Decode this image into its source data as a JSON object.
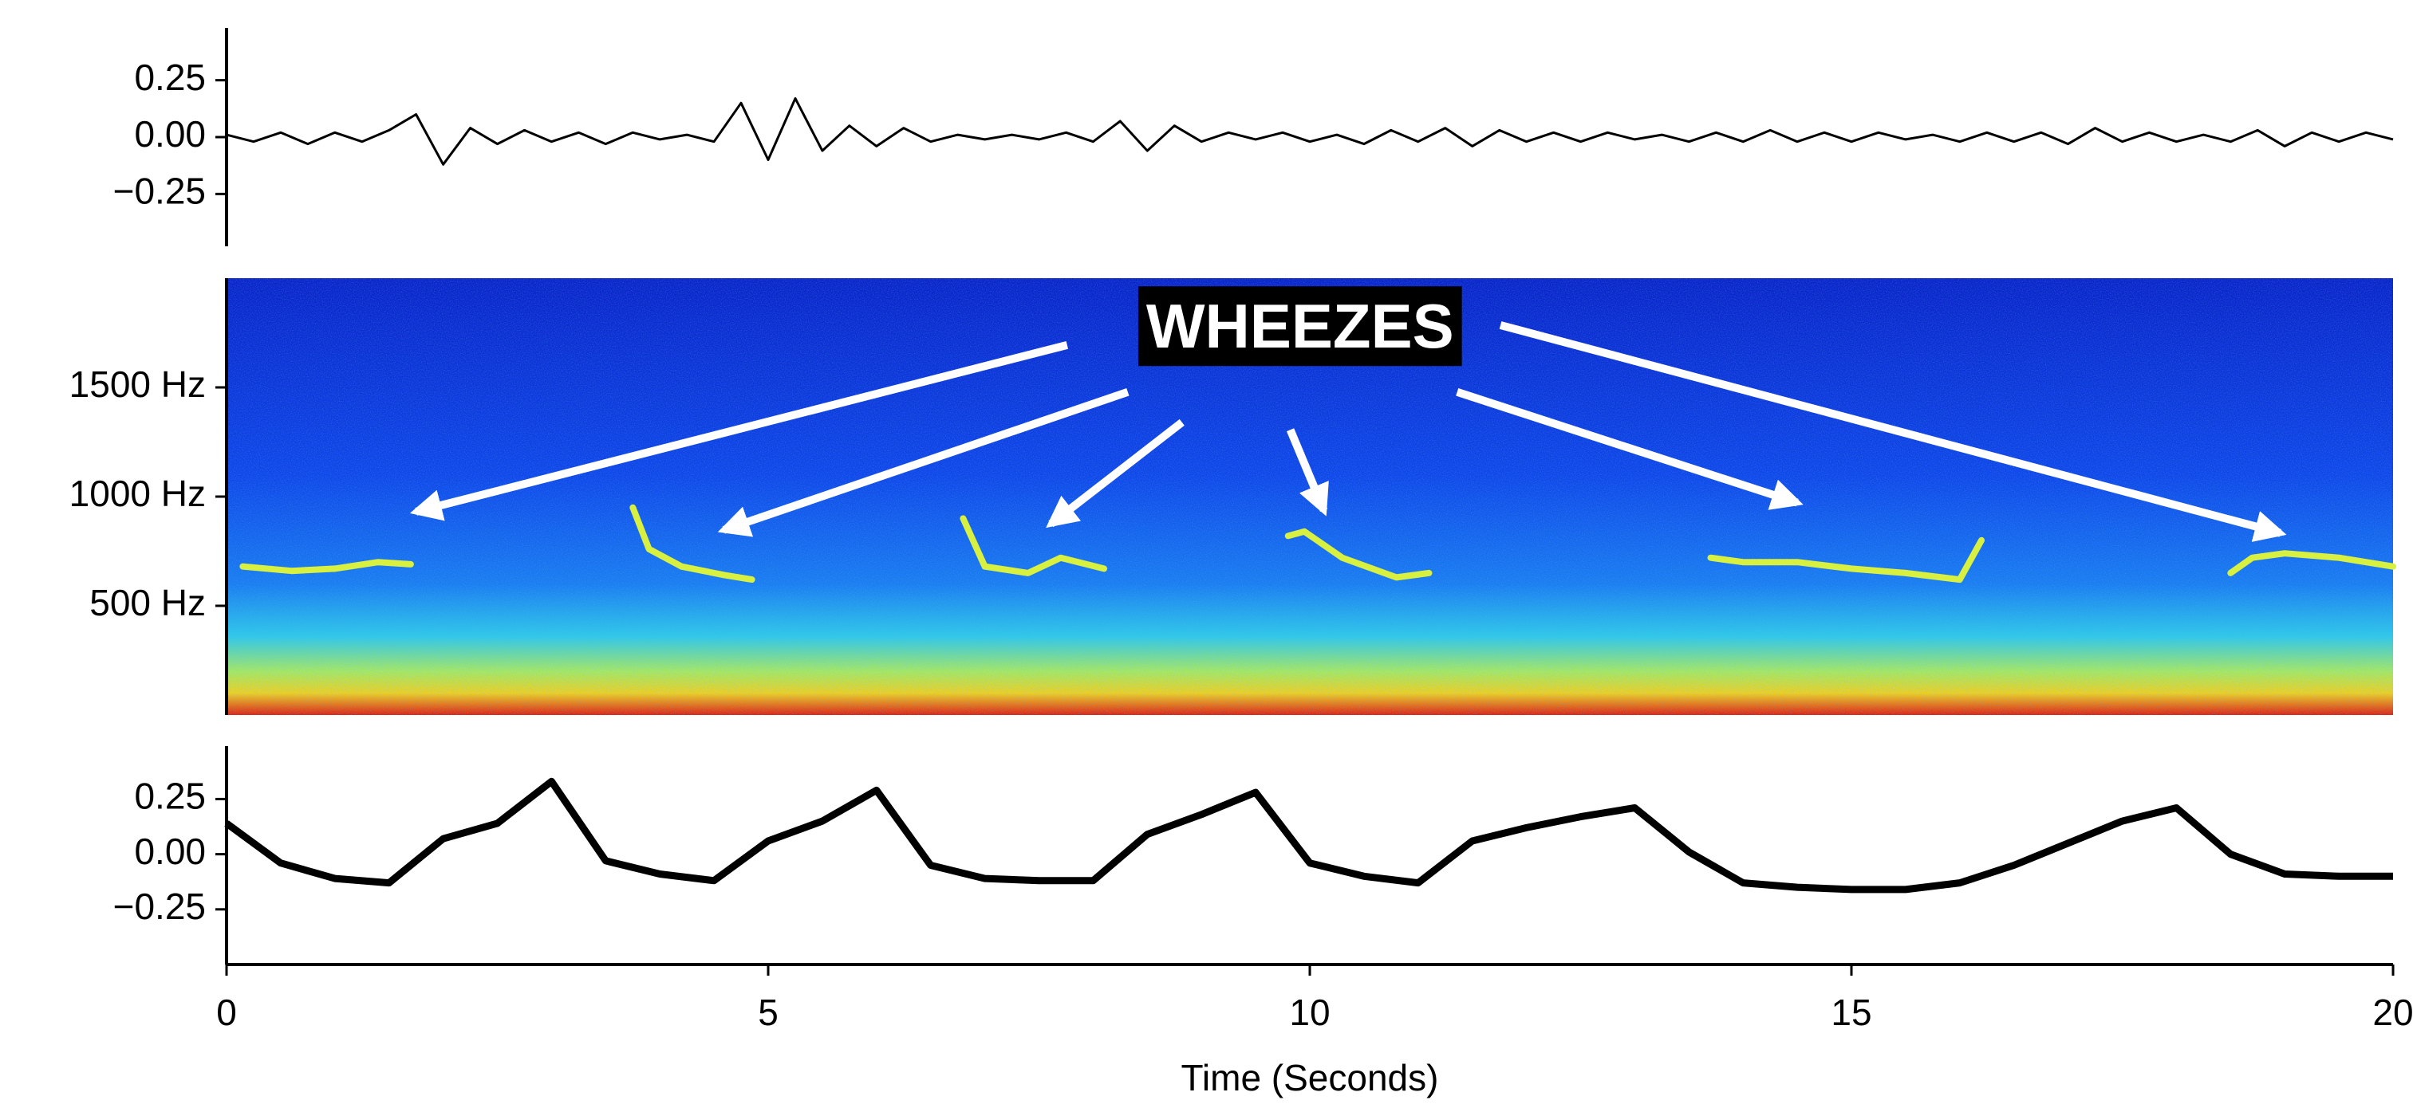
{
  "chart_data": [
    {
      "type": "line",
      "xlim": [
        0,
        20
      ],
      "ylim": [
        -0.48,
        0.48
      ],
      "yticks": [
        {
          "value": -0.25,
          "label": "−0.25"
        },
        {
          "value": 0,
          "label": "0.00"
        },
        {
          "value": 0.25,
          "label": "0.25"
        }
      ],
      "color": "#000000",
      "x": [
        0,
        0.25,
        0.5,
        0.75,
        1,
        1.25,
        1.5,
        1.75,
        2,
        2.25,
        2.5,
        2.75,
        3,
        3.25,
        3.5,
        3.75,
        4,
        4.25,
        4.5,
        4.75,
        5,
        5.25,
        5.5,
        5.75,
        6,
        6.25,
        6.5,
        6.75,
        7,
        7.25,
        7.5,
        7.75,
        8,
        8.25,
        8.5,
        8.75,
        9,
        9.25,
        9.5,
        9.75,
        10,
        10.25,
        10.5,
        10.75,
        11,
        11.25,
        11.5,
        11.75,
        12,
        12.25,
        12.5,
        12.75,
        13,
        13.25,
        13.5,
        13.75,
        14,
        14.25,
        14.5,
        14.75,
        15,
        15.25,
        15.5,
        15.75,
        16,
        16.25,
        16.5,
        16.75,
        17,
        17.25,
        17.5,
        17.75,
        18,
        18.25,
        18.5,
        18.75,
        19,
        19.25,
        19.5,
        19.75,
        20
      ],
      "values": [
        0.01,
        -0.02,
        0.02,
        -0.03,
        0.02,
        -0.02,
        0.03,
        0.1,
        -0.12,
        0.04,
        -0.03,
        0.03,
        -0.02,
        0.02,
        -0.03,
        0.02,
        -0.01,
        0.01,
        -0.02,
        0.15,
        -0.1,
        0.17,
        -0.06,
        0.05,
        -0.04,
        0.04,
        -0.02,
        0.01,
        -0.01,
        0.01,
        -0.01,
        0.02,
        -0.02,
        0.07,
        -0.06,
        0.05,
        -0.02,
        0.02,
        -0.01,
        0.02,
        -0.02,
        0.01,
        -0.03,
        0.03,
        -0.02,
        0.04,
        -0.04,
        0.03,
        -0.02,
        0.02,
        -0.02,
        0.02,
        -0.01,
        0.01,
        -0.02,
        0.02,
        -0.02,
        0.03,
        -0.02,
        0.02,
        -0.02,
        0.02,
        -0.01,
        0.01,
        -0.02,
        0.02,
        -0.02,
        0.02,
        -0.03,
        0.04,
        -0.02,
        0.02,
        -0.02,
        0.01,
        -0.02,
        0.03,
        -0.04,
        0.02,
        -0.02,
        0.02,
        -0.01
      ]
    },
    {
      "type": "spectrogram",
      "xlim": [
        0,
        20
      ],
      "ylim": [
        0,
        2000
      ],
      "yticks": [
        {
          "value": 500,
          "label": "500 Hz"
        },
        {
          "value": 1000,
          "label": "1000 Hz"
        },
        {
          "value": 1500,
          "label": "1500 Hz"
        }
      ],
      "color": "#d8f040",
      "traces": [
        {
          "x": [
            0.15,
            0.6,
            1.0,
            1.4,
            1.7
          ],
          "values": [
            680,
            660,
            670,
            700,
            690
          ]
        },
        {
          "x": [
            3.75,
            3.9,
            4.2,
            4.6,
            4.85
          ],
          "values": [
            950,
            760,
            680,
            640,
            620
          ]
        },
        {
          "x": [
            6.8,
            7.0,
            7.4,
            7.7,
            8.1
          ],
          "values": [
            900,
            680,
            650,
            720,
            670
          ]
        },
        {
          "x": [
            9.8,
            9.95,
            10.3,
            10.8,
            11.1
          ],
          "values": [
            820,
            840,
            720,
            630,
            650
          ]
        },
        {
          "x": [
            13.7,
            14.0,
            14.5,
            15.0,
            15.5,
            16.0,
            16.2
          ],
          "values": [
            720,
            700,
            700,
            670,
            650,
            620,
            800
          ]
        },
        {
          "x": [
            18.5,
            18.7,
            19.0,
            19.5,
            20.0
          ],
          "values": [
            650,
            720,
            740,
            720,
            680
          ]
        }
      ],
      "annotation": {
        "text": "WHEEZES",
        "x": 9.91,
        "y": 1757
      },
      "arrows": [
        {
          "from": [
            7.76,
            1694
          ],
          "to": [
            1.75,
            931
          ]
        },
        {
          "from": [
            8.32,
            1479
          ],
          "to": [
            4.59,
            847
          ]
        },
        {
          "from": [
            8.82,
            1340
          ],
          "to": [
            7.61,
            875
          ]
        },
        {
          "from": [
            9.82,
            1306
          ],
          "to": [
            10.13,
            937
          ]
        },
        {
          "from": [
            11.36,
            1479
          ],
          "to": [
            14.5,
            972
          ]
        },
        {
          "from": [
            11.76,
            1785
          ],
          "to": [
            18.96,
            833
          ]
        }
      ]
    },
    {
      "type": "line",
      "xlim": [
        0,
        20
      ],
      "ylim": [
        -0.5,
        0.49
      ],
      "yticks": [
        {
          "value": -0.25,
          "label": "−0.25"
        },
        {
          "value": 0,
          "label": "0.00"
        },
        {
          "value": 0.25,
          "label": "0.25"
        }
      ],
      "xticks": [
        0,
        5,
        10,
        15,
        20
      ],
      "xlabel": "Time (Seconds)",
      "color": "#000000",
      "x": [
        0,
        0.5,
        1,
        1.5,
        2,
        2.5,
        3,
        3.5,
        4,
        4.5,
        5,
        5.5,
        6,
        6.5,
        7,
        7.5,
        8,
        8.5,
        9,
        9.5,
        10,
        10.5,
        11,
        11.5,
        12,
        12.5,
        13,
        13.5,
        14,
        14.5,
        15,
        15.5,
        16,
        16.5,
        17,
        17.5,
        18,
        18.5,
        19,
        19.5,
        20
      ],
      "values": [
        0.14,
        -0.04,
        -0.11,
        -0.13,
        0.07,
        0.14,
        0.33,
        -0.03,
        -0.09,
        -0.12,
        0.06,
        0.15,
        0.29,
        -0.05,
        -0.11,
        -0.12,
        -0.12,
        0.09,
        0.18,
        0.28,
        -0.04,
        -0.1,
        -0.13,
        0.06,
        0.12,
        0.17,
        0.21,
        0.01,
        -0.13,
        -0.15,
        -0.16,
        -0.16,
        -0.13,
        -0.05,
        0.05,
        0.15,
        0.21,
        0.0,
        -0.09,
        -0.1,
        -0.1
      ]
    }
  ]
}
